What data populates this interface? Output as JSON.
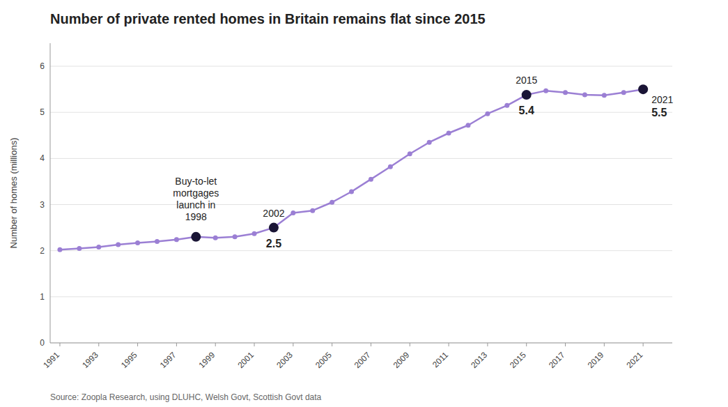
{
  "chart_data": {
    "type": "line",
    "title": "Number of private rented homes in Britain remains flat since 2015",
    "y_label": "Number of homes (millions)",
    "source": "Source: Zoopla Research, using  DLUHC, Welsh Govt, Scottish Govt data",
    "x": [
      1991,
      1992,
      1993,
      1994,
      1995,
      1996,
      1997,
      1998,
      1999,
      2000,
      2001,
      2002,
      2003,
      2004,
      2005,
      2006,
      2007,
      2008,
      2009,
      2010,
      2011,
      2012,
      2013,
      2014,
      2015,
      2016,
      2017,
      2018,
      2019,
      2020,
      2021
    ],
    "values": [
      2.02,
      2.05,
      2.08,
      2.13,
      2.17,
      2.2,
      2.24,
      2.3,
      2.28,
      2.3,
      2.37,
      2.5,
      2.82,
      2.87,
      3.05,
      3.28,
      3.55,
      3.82,
      4.1,
      4.35,
      4.55,
      4.72,
      4.97,
      5.15,
      5.38,
      5.47,
      5.43,
      5.38,
      5.37,
      5.43,
      5.5
    ],
    "color": "#9b7fd4",
    "marker": "circle",
    "highlights": {
      "x": [
        1998,
        2002,
        2015,
        2021
      ],
      "values": [
        2.3,
        2.5,
        5.38,
        5.5
      ],
      "color": "#1a1535",
      "labels": [
        "Buy-to-let\nmortgages\nlaunch in\n1998",
        "2002",
        "2015",
        "2021"
      ],
      "value_labels": [
        null,
        "2.5",
        "5.4",
        "5.5"
      ]
    },
    "xlim": [
      1990.5,
      2022.5
    ],
    "xticks": [
      1991,
      1993,
      1995,
      1997,
      1999,
      2001,
      2003,
      2005,
      2007,
      2009,
      2011,
      2013,
      2015,
      2017,
      2019,
      2021
    ],
    "ylim": [
      0,
      6.5
    ],
    "yticks": [
      0,
      1,
      2,
      3,
      4,
      5,
      6
    ],
    "grid": true
  }
}
